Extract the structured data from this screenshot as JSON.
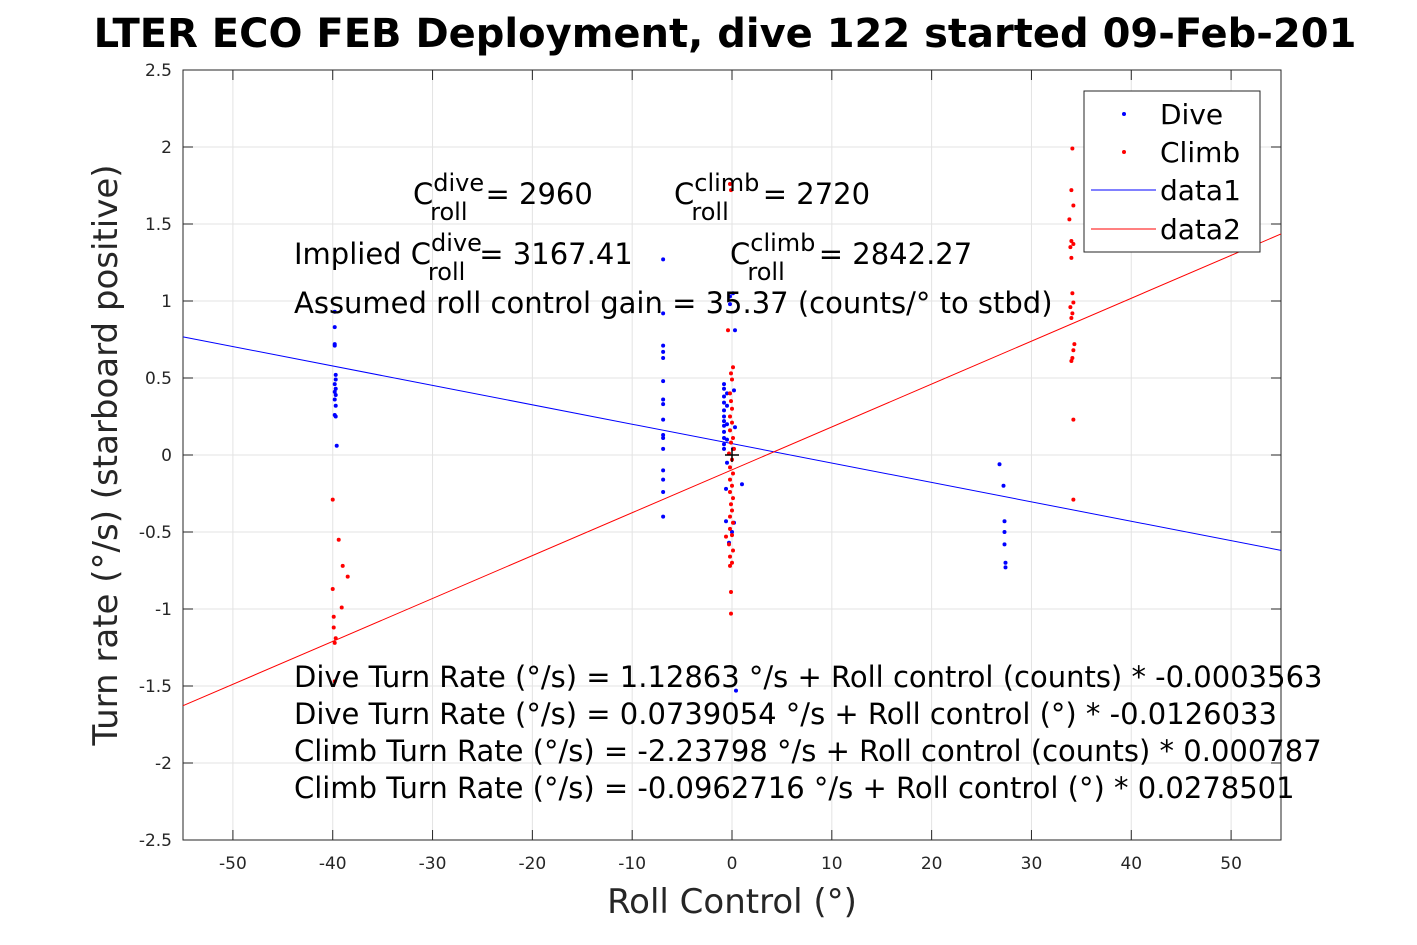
{
  "chart_data": {
    "type": "scatter",
    "title": "LTER ECO FEB Deployment, dive 122 started 09-Feb-201",
    "xlabel": "Roll Control (°)",
    "ylabel": "Turn rate (°/s) (starboard positive)",
    "xlim": [
      -55,
      55
    ],
    "ylim": [
      -2.5,
      2.5
    ],
    "xticks": [
      -50,
      -40,
      -30,
      -20,
      -10,
      0,
      10,
      20,
      30,
      40,
      50
    ],
    "yticks": [
      -2.5,
      -2,
      -1.5,
      -1,
      -0.5,
      0,
      0.5,
      1,
      1.5,
      2,
      2.5
    ],
    "grid": true,
    "legend_position": "top-right",
    "legend": [
      "Dive",
      "Climb",
      "data1",
      "data2"
    ],
    "series": [
      {
        "name": "Dive",
        "kind": "points",
        "color": "#0000ff",
        "points": [
          [
            -39.8,
            0.93
          ],
          [
            -39.8,
            0.83
          ],
          [
            -39.8,
            0.72
          ],
          [
            -39.8,
            0.71
          ],
          [
            -39.7,
            0.52
          ],
          [
            -39.7,
            0.49
          ],
          [
            -39.8,
            0.46
          ],
          [
            -39.7,
            0.43
          ],
          [
            -39.8,
            0.41
          ],
          [
            -39.7,
            0.39
          ],
          [
            -39.8,
            0.36
          ],
          [
            -39.7,
            0.32
          ],
          [
            -39.8,
            0.26
          ],
          [
            -39.7,
            0.25
          ],
          [
            -39.6,
            0.06
          ],
          [
            -6.9,
            1.27
          ],
          [
            -6.9,
            0.92
          ],
          [
            -6.9,
            0.71
          ],
          [
            -6.9,
            0.67
          ],
          [
            -6.9,
            0.63
          ],
          [
            -6.9,
            0.48
          ],
          [
            -6.9,
            0.36
          ],
          [
            -6.9,
            0.33
          ],
          [
            -6.9,
            0.23
          ],
          [
            -6.9,
            0.13
          ],
          [
            -6.9,
            0.11
          ],
          [
            -6.9,
            0.04
          ],
          [
            -6.9,
            -0.1
          ],
          [
            -6.9,
            -0.16
          ],
          [
            -6.9,
            -0.24
          ],
          [
            -6.9,
            -0.4
          ],
          [
            -0.8,
            0.46
          ],
          [
            -0.8,
            0.43
          ],
          [
            -0.8,
            0.38
          ],
          [
            -0.8,
            0.34
          ],
          [
            -0.8,
            0.29
          ],
          [
            -0.8,
            0.25
          ],
          [
            -0.8,
            0.22
          ],
          [
            -0.8,
            0.19
          ],
          [
            -0.8,
            0.15
          ],
          [
            -0.8,
            0.11
          ],
          [
            -0.8,
            0.07
          ],
          [
            -0.8,
            0.04
          ],
          [
            -0.5,
            0.4
          ],
          [
            -0.5,
            0.32
          ],
          [
            -0.5,
            0.2
          ],
          [
            -0.5,
            0.1
          ],
          [
            -0.5,
            -0.05
          ],
          [
            -0.2,
            1.03
          ],
          [
            -0.2,
            0.98
          ],
          [
            0.1,
            1.05
          ],
          [
            0.3,
            0.81
          ],
          [
            0.2,
            0.42
          ],
          [
            0.3,
            0.18
          ],
          [
            0.1,
            0.04
          ],
          [
            -0.6,
            -0.22
          ],
          [
            -0.6,
            -0.43
          ],
          [
            0.2,
            -0.44
          ],
          [
            0.0,
            -0.5
          ],
          [
            -0.3,
            -0.57
          ],
          [
            1.0,
            -0.19
          ],
          [
            0.4,
            -1.53
          ],
          [
            26.8,
            -0.06
          ],
          [
            27.2,
            -0.2
          ],
          [
            27.3,
            -0.43
          ],
          [
            27.3,
            -0.5
          ],
          [
            27.3,
            -0.58
          ],
          [
            27.4,
            -0.7
          ],
          [
            27.4,
            -0.73
          ]
        ]
      },
      {
        "name": "Climb",
        "kind": "points",
        "color": "#ff0000",
        "points": [
          [
            -40.0,
            -0.29
          ],
          [
            -39.4,
            -0.55
          ],
          [
            -39.0,
            -0.72
          ],
          [
            -38.5,
            -0.79
          ],
          [
            -40.0,
            -0.87
          ],
          [
            -39.1,
            -0.99
          ],
          [
            -39.9,
            -1.05
          ],
          [
            -39.9,
            -1.12
          ],
          [
            -39.7,
            -1.19
          ],
          [
            -39.8,
            -1.22
          ],
          [
            -39.8,
            -1.47
          ],
          [
            -0.2,
            1.76
          ],
          [
            -0.1,
            1.72
          ],
          [
            -0.4,
            0.81
          ],
          [
            0.1,
            0.57
          ],
          [
            -0.1,
            0.53
          ],
          [
            0.0,
            0.49
          ],
          [
            -0.2,
            0.4
          ],
          [
            -0.1,
            0.35
          ],
          [
            0.0,
            0.3
          ],
          [
            -0.2,
            0.25
          ],
          [
            0.0,
            0.21
          ],
          [
            -0.2,
            0.16
          ],
          [
            0.1,
            0.11
          ],
          [
            -0.1,
            0.08
          ],
          [
            0.2,
            0.04
          ],
          [
            -0.3,
            0.01
          ],
          [
            0.0,
            -0.03
          ],
          [
            -0.2,
            -0.08
          ],
          [
            0.1,
            -0.12
          ],
          [
            -0.2,
            -0.16
          ],
          [
            0.0,
            -0.2
          ],
          [
            -0.2,
            -0.24
          ],
          [
            0.1,
            -0.28
          ],
          [
            -0.1,
            -0.32
          ],
          [
            0.0,
            -0.36
          ],
          [
            -0.2,
            -0.4
          ],
          [
            0.1,
            -0.44
          ],
          [
            -0.2,
            -0.48
          ],
          [
            0.0,
            -0.52
          ],
          [
            -0.6,
            -0.53
          ],
          [
            -0.3,
            -0.58
          ],
          [
            0.1,
            -0.62
          ],
          [
            -0.2,
            -0.66
          ],
          [
            0.0,
            -0.7
          ],
          [
            -0.2,
            -0.72
          ],
          [
            -0.1,
            -0.89
          ],
          [
            -0.1,
            -1.03
          ],
          [
            34.1,
            1.99
          ],
          [
            34.0,
            1.72
          ],
          [
            34.2,
            1.62
          ],
          [
            33.8,
            1.53
          ],
          [
            34.0,
            1.39
          ],
          [
            34.2,
            1.37
          ],
          [
            33.9,
            1.35
          ],
          [
            34.0,
            1.28
          ],
          [
            34.1,
            1.05
          ],
          [
            34.2,
            0.99
          ],
          [
            33.9,
            0.96
          ],
          [
            34.1,
            0.92
          ],
          [
            34.0,
            0.89
          ],
          [
            34.3,
            0.72
          ],
          [
            34.2,
            0.68
          ],
          [
            34.1,
            0.63
          ],
          [
            34.0,
            0.61
          ],
          [
            34.2,
            0.23
          ],
          [
            34.2,
            -0.29
          ]
        ]
      },
      {
        "name": "data1",
        "kind": "line",
        "color": "#0000ff",
        "slope": -0.0126033,
        "intercept": 0.0739054,
        "x": [
          -55,
          55
        ]
      },
      {
        "name": "data2",
        "kind": "line",
        "color": "#ff0000",
        "slope": 0.0278501,
        "intercept": -0.0962716,
        "x": [
          -55,
          55
        ]
      }
    ],
    "marker": {
      "symbol": "+",
      "x": 0,
      "y": 0,
      "color": "#000000"
    },
    "annotations": {
      "c_dive_base": "C",
      "c_dive_sup": "dive",
      "c_dive_sub": "roll",
      "c_dive_val": "= 2960",
      "c_climb_base": "C",
      "c_climb_sup": "climb",
      "c_climb_sub": "roll",
      "c_climb_val": "= 2720",
      "implied_prefix": "Implied C",
      "implied_dive_sup": "dive",
      "implied_dive_sub": "roll",
      "implied_dive_val": "= 3167.41",
      "implied_climb_base": "C",
      "implied_climb_sup": "climb",
      "implied_climb_sub": "roll",
      "implied_climb_val": "= 2842.27",
      "gain": "Assumed roll control gain = 35.37 (counts/° to stbd)",
      "eq1": "Dive Turn Rate (°/s) = 1.12863 °/s + Roll control (counts) * -0.0003563",
      "eq2": "Dive Turn Rate (°/s) = 0.0739054 °/s + Roll control (°) * -0.0126033",
      "eq3": "Climb Turn Rate (°/s) = -2.23798 °/s + Roll control (counts) * 0.000787",
      "eq4": "Climb Turn Rate (°/s) = -0.0962716 °/s + Roll control (°) * 0.0278501"
    }
  }
}
